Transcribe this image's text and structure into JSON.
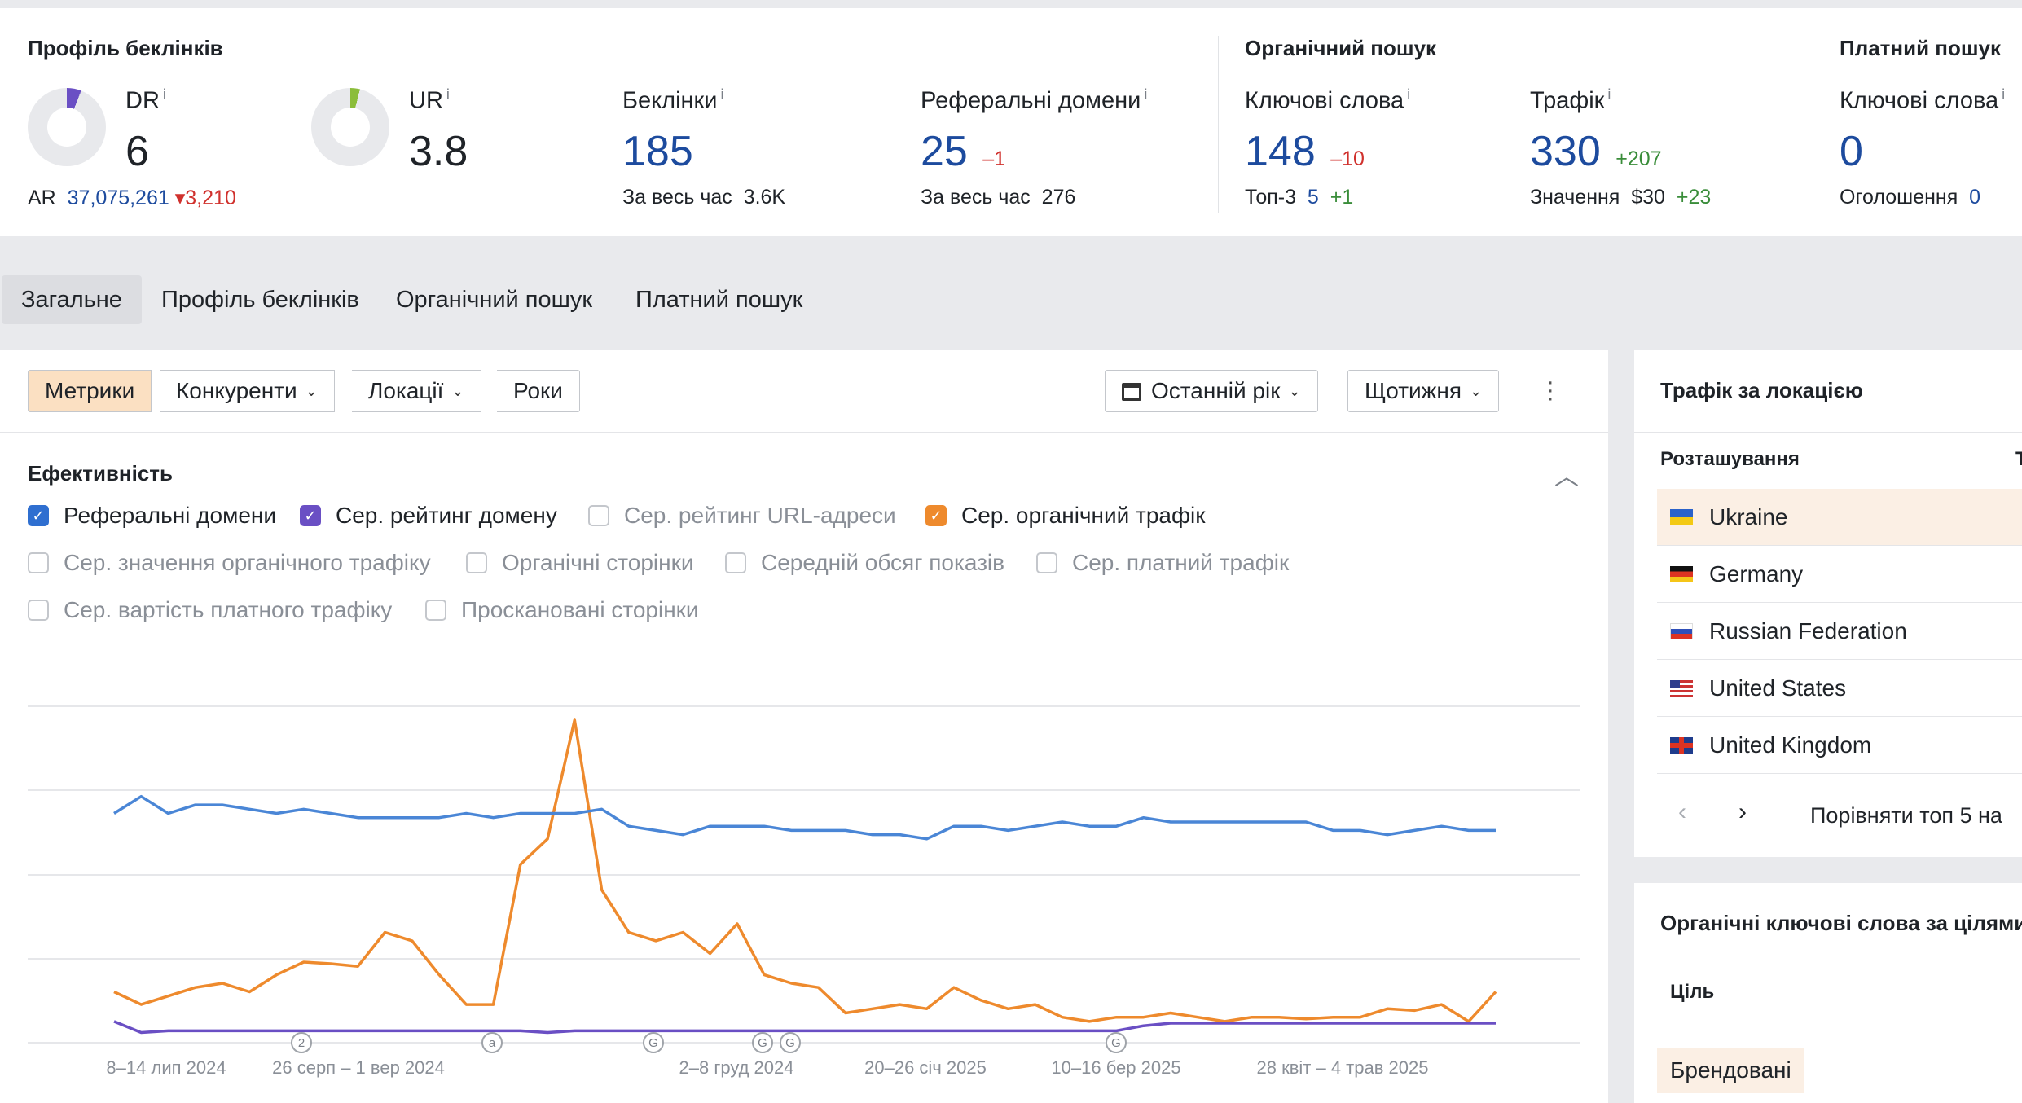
{
  "summary": {
    "backlink_profile_title": "Профіль беклінків",
    "organic_title": "Органічний пошук",
    "paid_title": "Платний пошук",
    "dr": {
      "label": "DR",
      "info": "i",
      "value": "6",
      "fill": 0.06
    },
    "ur": {
      "label": "UR",
      "info": "i",
      "value": "3.8",
      "fill": 0.04
    },
    "ar": {
      "label": "AR",
      "value": "37,075,261",
      "delta": "3,210"
    },
    "backlinks": {
      "label": "Беклінки",
      "info": "i",
      "value": "185",
      "sub_label": "За весь час",
      "sub_value": "3.6K"
    },
    "ref_domains": {
      "label": "Реферальні домени",
      "info": "i",
      "value": "25",
      "delta": "–1",
      "sub_label": "За весь час",
      "sub_value": "276"
    },
    "org_keywords": {
      "label": "Ключові слова",
      "info": "i",
      "value": "148",
      "delta": "–10",
      "sub_label": "Топ-3",
      "sub_value": "5",
      "sub_delta": "+1"
    },
    "org_traffic": {
      "label": "Трафік",
      "info": "i",
      "value": "330",
      "delta": "+207",
      "sub_label": "Значення",
      "sub_value": "$30",
      "sub_delta": "+23"
    },
    "paid_keywords": {
      "label": "Ключові слова",
      "info": "i",
      "value": "0",
      "sub_label": "Оголошення",
      "sub_value": "0"
    }
  },
  "tabs": [
    {
      "label": "Загальне",
      "active": true
    },
    {
      "label": "Профіль беклінків"
    },
    {
      "label": "Органічний пошук"
    },
    {
      "label": "Платний пошук"
    }
  ],
  "toolbar": {
    "metrics": "Метрики",
    "competitors": "Конкуренти",
    "locations": "Локації",
    "years": "Роки",
    "period": "Останній рік",
    "interval": "Щотижня"
  },
  "efficiency": {
    "title": "Ефективність",
    "checkboxes": [
      {
        "label": "Реферальні домени",
        "checked": true,
        "color": "#2f6fd0"
      },
      {
        "label": "Сер. рейтинг домену",
        "checked": true,
        "color": "#6a4fc4"
      },
      {
        "label": "Сер. рейтинг URL-адреси",
        "checked": false
      },
      {
        "label": "Сер. органічний трафік",
        "checked": true,
        "color": "#ee8a2d"
      },
      {
        "label": "Сер. значення органічного трафіку",
        "checked": false
      },
      {
        "label": "Органічні сторінки",
        "checked": false
      },
      {
        "label": "Середній обсяг показів",
        "checked": false
      },
      {
        "label": "Сер. платний трафік",
        "checked": false
      },
      {
        "label": "Сер. вартість платного трафіку",
        "checked": false
      },
      {
        "label": "Проскановані сторінки",
        "checked": false
      }
    ]
  },
  "chart_data": {
    "type": "line",
    "x_ticks": [
      "8–14 лип 2024",
      "26 серп – 1 вер 2024",
      "2–8 груд 2024",
      "20–26 січ 2025",
      "10–16 бер 2025",
      "28 квіт – 4 трав 2025"
    ],
    "series": [
      {
        "name": "Реферальні домени",
        "color": "#4a86d6",
        "values": [
          27,
          29,
          27,
          28,
          28,
          27.5,
          27,
          27.5,
          27,
          26.5,
          26.5,
          26.5,
          26.5,
          27,
          26.5,
          27,
          27,
          27,
          27.5,
          25.5,
          25,
          24.5,
          25.5,
          25.5,
          25.5,
          25,
          25,
          25,
          24.5,
          24.5,
          24,
          25.5,
          25.5,
          25,
          25.5,
          26,
          25.5,
          25.5,
          26.5,
          26,
          26,
          26,
          26,
          26,
          26,
          25,
          25,
          24.5,
          25,
          25.5,
          25,
          25
        ]
      },
      {
        "name": "Сер. рейтинг домену",
        "color": "#6a4fc4",
        "values": [
          2.5,
          1.2,
          1.4,
          1.4,
          1.4,
          1.4,
          1.4,
          1.4,
          1.4,
          1.4,
          1.4,
          1.4,
          1.4,
          1.4,
          1.4,
          1.4,
          1.2,
          1.4,
          1.4,
          1.4,
          1.4,
          1.4,
          1.4,
          1.4,
          1.4,
          1.4,
          1.4,
          1.4,
          1.4,
          1.4,
          1.4,
          1.4,
          1.4,
          1.4,
          1.4,
          1.4,
          1.4,
          1.4,
          2.0,
          2.3,
          2.3,
          2.3,
          2.3,
          2.3,
          2.3,
          2.3,
          2.3,
          2.3,
          2.3,
          2.3,
          2.3,
          2.3
        ]
      },
      {
        "name": "Сер. органічний трафік",
        "color": "#ee8a2d",
        "values": [
          6,
          4.5,
          5.5,
          6.5,
          7,
          6,
          8,
          9.5,
          9.3,
          9,
          13,
          12,
          8,
          4.5,
          4.5,
          21,
          24,
          38,
          18,
          13,
          12,
          13,
          10.5,
          14,
          8,
          7,
          6.5,
          3.5,
          4,
          4.5,
          4,
          6.5,
          5,
          4,
          4.5,
          3,
          2.5,
          3,
          3,
          3.5,
          3,
          2.5,
          3,
          3,
          2.8,
          3,
          3,
          4,
          3.8,
          4.5,
          2.5,
          6
        ]
      }
    ],
    "markers": [
      "2",
      "a",
      "G",
      "G",
      "G",
      "G"
    ],
    "grid": true,
    "legend": "none"
  },
  "traffic_by_location": {
    "title": "Трафік за локацією",
    "column": "Розташування",
    "rows": [
      {
        "country": "Ukraine",
        "highlight": true,
        "flag": "ua"
      },
      {
        "country": "Germany",
        "flag": "de"
      },
      {
        "country": "Russian Federation",
        "flag": "ru"
      },
      {
        "country": "United States",
        "flag": "us"
      },
      {
        "country": "United Kingdom",
        "flag": "gb"
      }
    ],
    "compare": "Порівняти топ 5 на"
  },
  "organic_by_intent": {
    "title": "Органічні ключові слова за цілями",
    "column": "Ціль",
    "badge": "Брендовані"
  }
}
